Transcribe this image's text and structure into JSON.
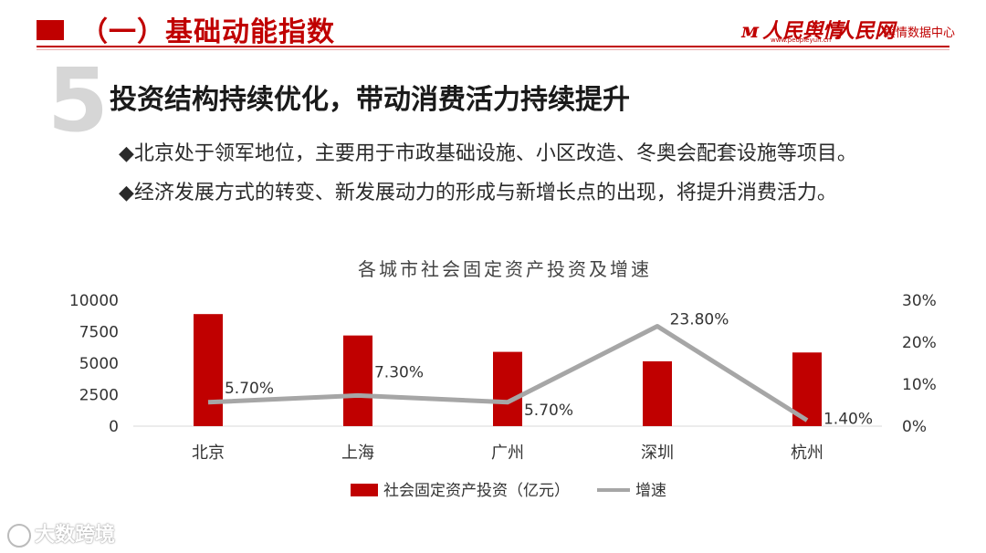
{
  "header": {
    "title": "（一）基础动能指数",
    "logo_left": "人民舆情",
    "logo_left_url": "www.peopleyun.cn",
    "logo_right": "人民网",
    "logo_right_sub": "舆情数据中心"
  },
  "section": {
    "number": "5",
    "heading": "投资结构持续优化，带动消费活力持续提升",
    "bullets": [
      "◆北京处于领军地位，主要用于市政基础设施、小区改造、冬奥会配套设施等项目。",
      "◆经济发展方式的转变、新发展动力的形成与新增长点的出现，将提升消费活力。"
    ]
  },
  "chart_data": {
    "type": "bar",
    "title": "各城市社会固定资产投资及增速",
    "categories": [
      "北京",
      "上海",
      "广州",
      "深圳",
      "杭州"
    ],
    "series": [
      {
        "name": "社会固定资产投资（亿元）",
        "type": "bar",
        "axis": "left",
        "color": "#c00000",
        "values": [
          8900,
          7200,
          5900,
          5150,
          5850
        ]
      },
      {
        "name": "增速",
        "type": "line",
        "axis": "right",
        "color": "#a6a6a6",
        "values": [
          5.7,
          7.3,
          5.7,
          23.8,
          1.4
        ],
        "labels": [
          "5.70%",
          "7.30%",
          "5.70%",
          "23.80%",
          "1.40%"
        ]
      }
    ],
    "y_left": {
      "min": 0,
      "max": 10000,
      "ticks": [
        "0",
        "2500",
        "5000",
        "7500",
        "10000"
      ]
    },
    "y_right": {
      "min": 0,
      "max": 30,
      "ticks": [
        "0%",
        "10%",
        "20%",
        "30%"
      ]
    },
    "grid": false,
    "legend_position": "bottom"
  },
  "watermark": "大数跨境"
}
